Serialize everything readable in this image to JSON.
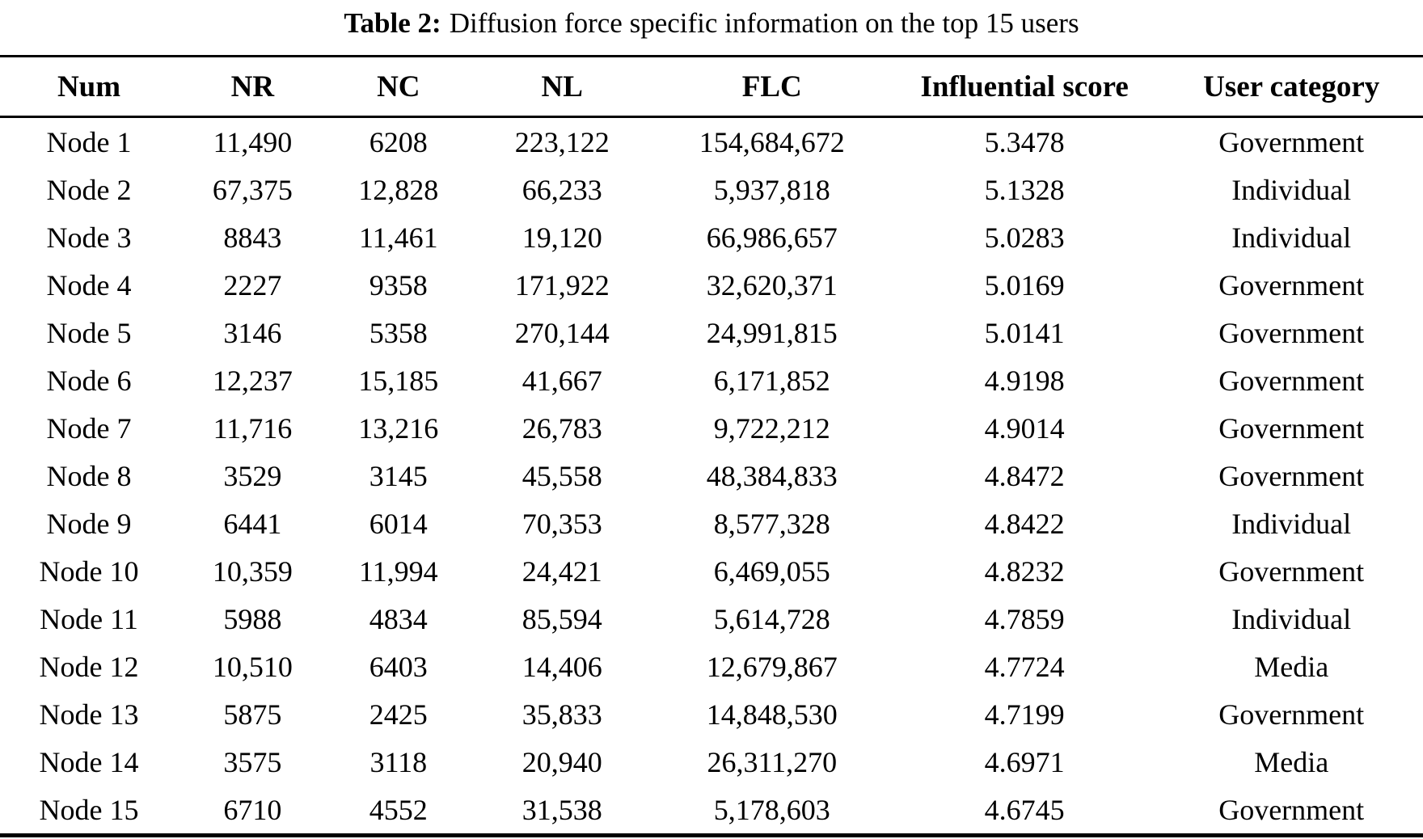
{
  "caption": {
    "label": "Table 2:",
    "text": "Diffusion force specific information on the top 15 users"
  },
  "table": {
    "headers": [
      "Num",
      "NR",
      "NC",
      "NL",
      "FLC",
      "Influential score",
      "User category"
    ],
    "rows": [
      [
        "Node 1",
        "11,490",
        "6208",
        "223,122",
        "154,684,672",
        "5.3478",
        "Government"
      ],
      [
        "Node 2",
        "67,375",
        "12,828",
        "66,233",
        "5,937,818",
        "5.1328",
        "Individual"
      ],
      [
        "Node 3",
        "8843",
        "11,461",
        "19,120",
        "66,986,657",
        "5.0283",
        "Individual"
      ],
      [
        "Node 4",
        "2227",
        "9358",
        "171,922",
        "32,620,371",
        "5.0169",
        "Government"
      ],
      [
        "Node 5",
        "3146",
        "5358",
        "270,144",
        "24,991,815",
        "5.0141",
        "Government"
      ],
      [
        "Node 6",
        "12,237",
        "15,185",
        "41,667",
        "6,171,852",
        "4.9198",
        "Government"
      ],
      [
        "Node 7",
        "11,716",
        "13,216",
        "26,783",
        "9,722,212",
        "4.9014",
        "Government"
      ],
      [
        "Node 8",
        "3529",
        "3145",
        "45,558",
        "48,384,833",
        "4.8472",
        "Government"
      ],
      [
        "Node 9",
        "6441",
        "6014",
        "70,353",
        "8,577,328",
        "4.8422",
        "Individual"
      ],
      [
        "Node 10",
        "10,359",
        "11,994",
        "24,421",
        "6,469,055",
        "4.8232",
        "Government"
      ],
      [
        "Node 11",
        "5988",
        "4834",
        "85,594",
        "5,614,728",
        "4.7859",
        "Individual"
      ],
      [
        "Node 12",
        "10,510",
        "6403",
        "14,406",
        "12,679,867",
        "4.7724",
        "Media"
      ],
      [
        "Node 13",
        "5875",
        "2425",
        "35,833",
        "14,848,530",
        "4.7199",
        "Government"
      ],
      [
        "Node 14",
        "3575",
        "3118",
        "20,940",
        "26,311,270",
        "4.6971",
        "Media"
      ],
      [
        "Node 15",
        "6710",
        "4552",
        "31,538",
        "5,178,603",
        "4.6745",
        "Government"
      ]
    ]
  },
  "chart_data": {
    "type": "table",
    "title": "Table 2: Diffusion force specific information on the top 15 users",
    "columns": [
      "Num",
      "NR",
      "NC",
      "NL",
      "FLC",
      "Influential score",
      "User category"
    ],
    "rows": [
      {
        "num": "Node 1",
        "nr": 11490,
        "nc": 6208,
        "nl": 223122,
        "flc": 154684672,
        "influential_score": 5.3478,
        "user_category": "Government"
      },
      {
        "num": "Node 2",
        "nr": 67375,
        "nc": 12828,
        "nl": 66233,
        "flc": 5937818,
        "influential_score": 5.1328,
        "user_category": "Individual"
      },
      {
        "num": "Node 3",
        "nr": 8843,
        "nc": 11461,
        "nl": 19120,
        "flc": 66986657,
        "influential_score": 5.0283,
        "user_category": "Individual"
      },
      {
        "num": "Node 4",
        "nr": 2227,
        "nc": 9358,
        "nl": 171922,
        "flc": 32620371,
        "influential_score": 5.0169,
        "user_category": "Government"
      },
      {
        "num": "Node 5",
        "nr": 3146,
        "nc": 5358,
        "nl": 270144,
        "flc": 24991815,
        "influential_score": 5.0141,
        "user_category": "Government"
      },
      {
        "num": "Node 6",
        "nr": 12237,
        "nc": 15185,
        "nl": 41667,
        "flc": 6171852,
        "influential_score": 4.9198,
        "user_category": "Government"
      },
      {
        "num": "Node 7",
        "nr": 11716,
        "nc": 13216,
        "nl": 26783,
        "flc": 9722212,
        "influential_score": 4.9014,
        "user_category": "Government"
      },
      {
        "num": "Node 8",
        "nr": 3529,
        "nc": 3145,
        "nl": 45558,
        "flc": 48384833,
        "influential_score": 4.8472,
        "user_category": "Government"
      },
      {
        "num": "Node 9",
        "nr": 6441,
        "nc": 6014,
        "nl": 70353,
        "flc": 8577328,
        "influential_score": 4.8422,
        "user_category": "Individual"
      },
      {
        "num": "Node 10",
        "nr": 10359,
        "nc": 11994,
        "nl": 24421,
        "flc": 6469055,
        "influential_score": 4.8232,
        "user_category": "Government"
      },
      {
        "num": "Node 11",
        "nr": 5988,
        "nc": 4834,
        "nl": 85594,
        "flc": 5614728,
        "influential_score": 4.7859,
        "user_category": "Individual"
      },
      {
        "num": "Node 12",
        "nr": 10510,
        "nc": 6403,
        "nl": 14406,
        "flc": 12679867,
        "influential_score": 4.7724,
        "user_category": "Media"
      },
      {
        "num": "Node 13",
        "nr": 5875,
        "nc": 2425,
        "nl": 35833,
        "flc": 14848530,
        "influential_score": 4.7199,
        "user_category": "Government"
      },
      {
        "num": "Node 14",
        "nr": 3575,
        "nc": 3118,
        "nl": 20940,
        "flc": 26311270,
        "influential_score": 4.6971,
        "user_category": "Media"
      },
      {
        "num": "Node 15",
        "nr": 6710,
        "nc": 4552,
        "nl": 31538,
        "flc": 5178603,
        "influential_score": 4.6745,
        "user_category": "Government"
      }
    ]
  },
  "colors": {
    "text": "#000000",
    "background": "#ffffff",
    "rule": "#000000"
  }
}
